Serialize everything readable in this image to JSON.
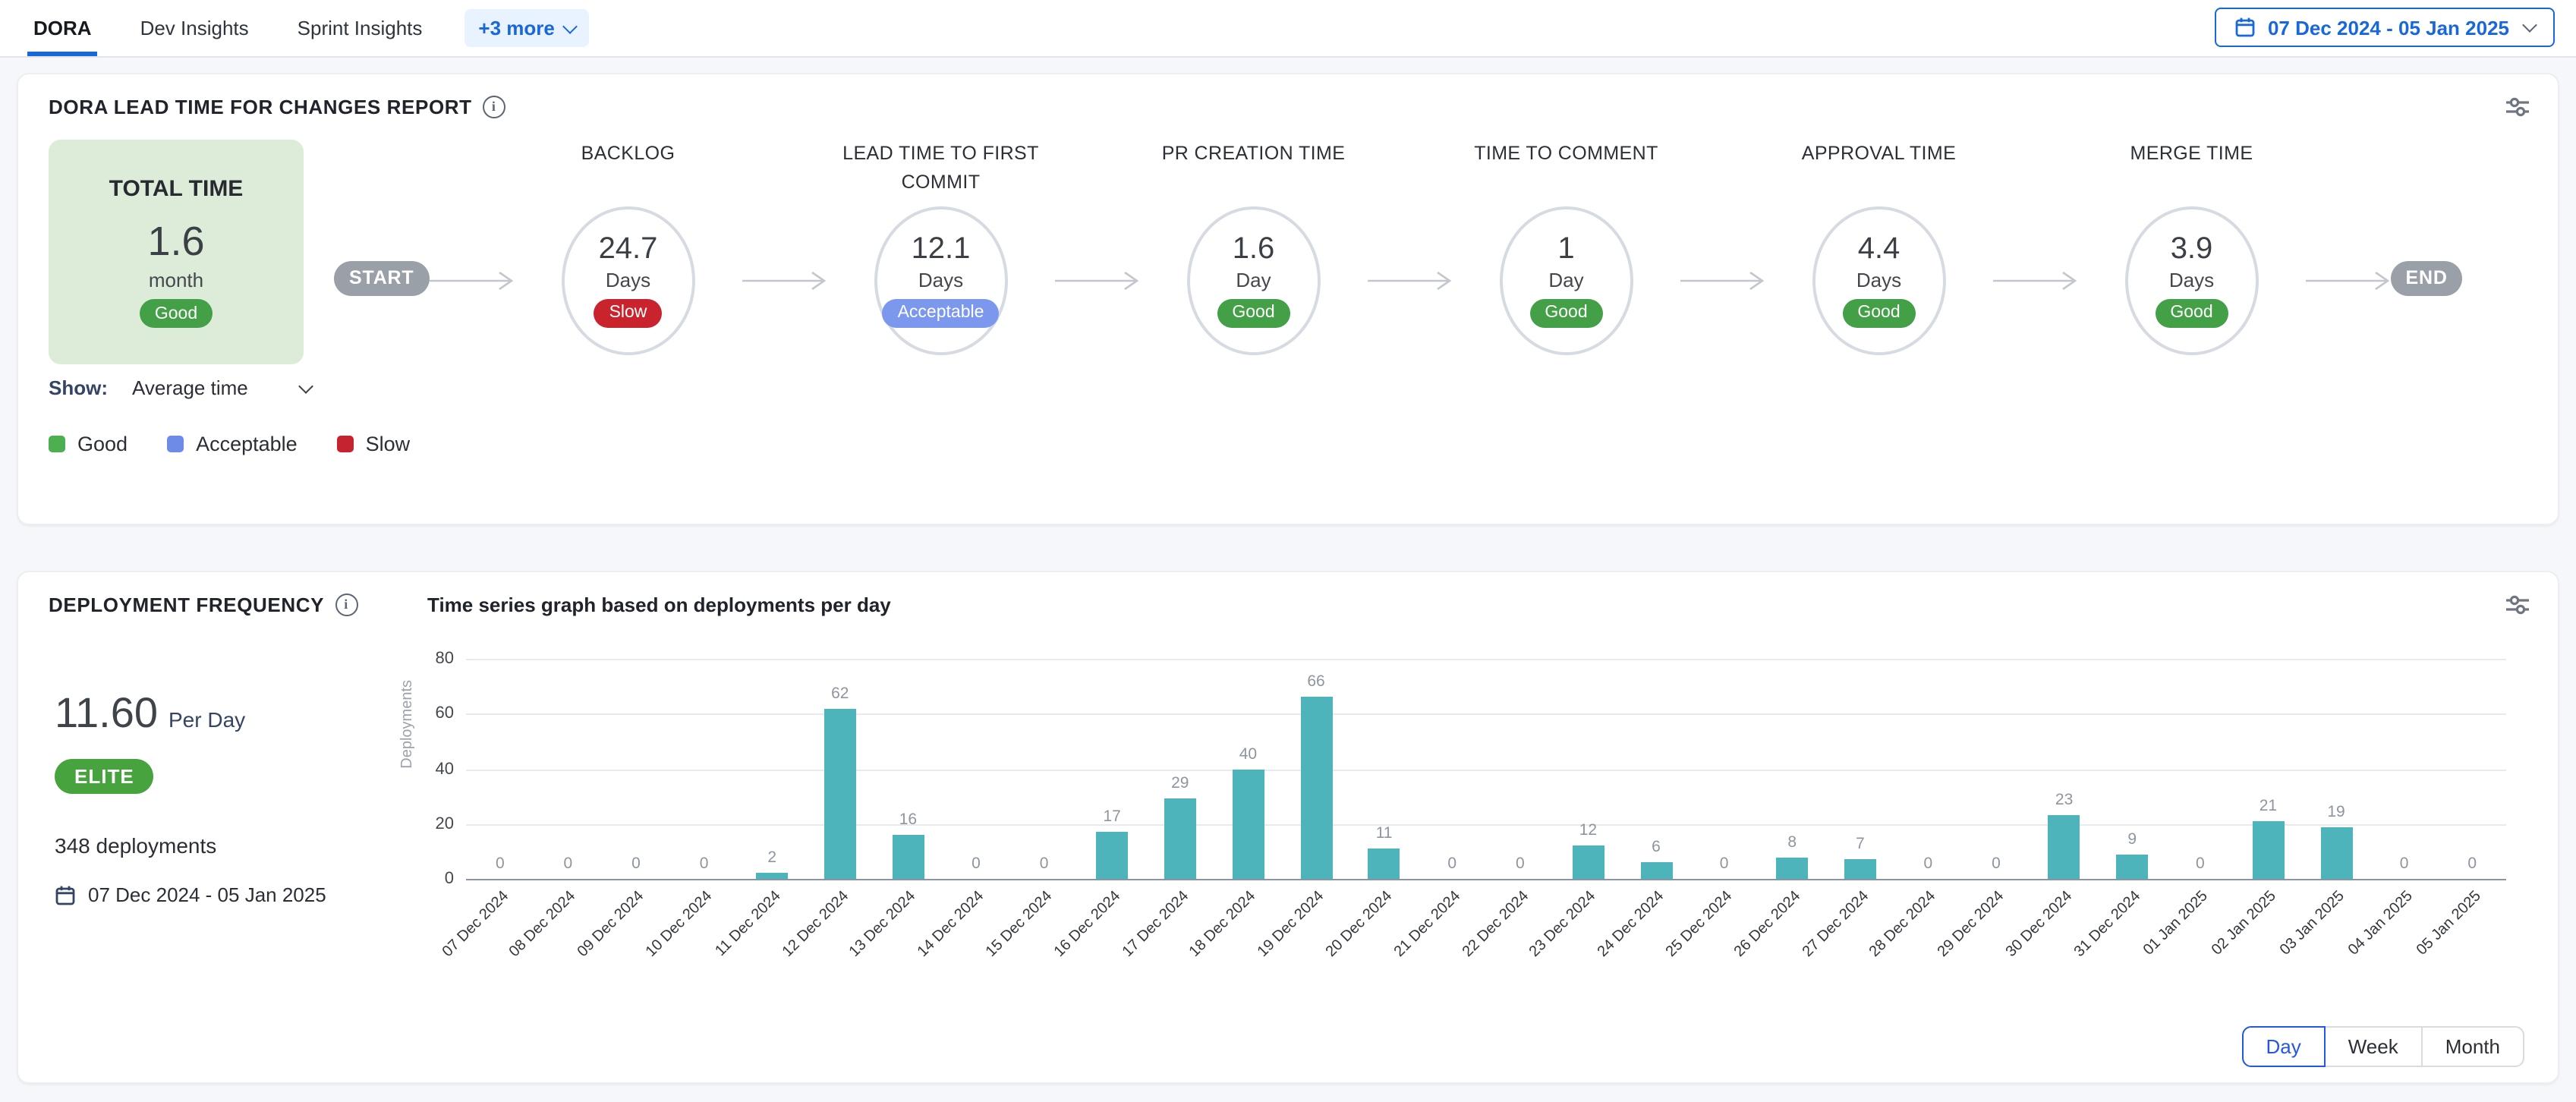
{
  "topbar": {
    "tabs": [
      {
        "label": "DORA",
        "active": true
      },
      {
        "label": "Dev Insights",
        "active": false
      },
      {
        "label": "Sprint Insights",
        "active": false
      }
    ],
    "more_label": "+3 more",
    "date_range": "07 Dec 2024 - 05 Jan 2025"
  },
  "lead_time_card": {
    "title": "DORA LEAD TIME FOR CHANGES REPORT",
    "total": {
      "label": "TOTAL TIME",
      "value": "1.6",
      "unit": "month",
      "status": "Good"
    },
    "start_label": "START",
    "end_label": "END",
    "stages": [
      {
        "name": "BACKLOG",
        "value": "24.7",
        "unit": "Days",
        "status": "Slow"
      },
      {
        "name": "LEAD TIME TO FIRST COMMIT",
        "value": "12.1",
        "unit": "Days",
        "status": "Acceptable"
      },
      {
        "name": "PR CREATION TIME",
        "value": "1.6",
        "unit": "Day",
        "status": "Good"
      },
      {
        "name": "TIME TO COMMENT",
        "value": "1",
        "unit": "Day",
        "status": "Good"
      },
      {
        "name": "APPROVAL TIME",
        "value": "4.4",
        "unit": "Days",
        "status": "Good"
      },
      {
        "name": "MERGE TIME",
        "value": "3.9",
        "unit": "Days",
        "status": "Good"
      }
    ],
    "show_label": "Show:",
    "show_value": "Average time",
    "legend": [
      {
        "label": "Good",
        "color": "#4caf50"
      },
      {
        "label": "Acceptable",
        "color": "#6d8ce8"
      },
      {
        "label": "Slow",
        "color": "#c62330"
      }
    ],
    "status_colors": {
      "Good": "#43a047",
      "Acceptable": "#7b97ee",
      "Slow": "#c9242d"
    }
  },
  "deployment_card": {
    "title": "DEPLOYMENT FREQUENCY",
    "subtitle": "Time series graph based on deployments per day",
    "rate_value": "11.60",
    "rate_unit": "Per Day",
    "tier": "ELITE",
    "total_deployments": "348 deployments",
    "date_range": "07 Dec 2024 - 05 Jan 2025",
    "granularity": [
      {
        "label": "Day",
        "active": true
      },
      {
        "label": "Week",
        "active": false
      },
      {
        "label": "Month",
        "active": false
      }
    ]
  },
  "chart_data": {
    "type": "bar",
    "title": "Time series graph based on deployments per day",
    "xlabel": "",
    "ylabel": "Deployments",
    "ylim": [
      0,
      80
    ],
    "yticks": [
      0,
      20,
      40,
      60,
      80
    ],
    "grid": true,
    "bar_color": "#4eb4bb",
    "categories": [
      "07 Dec 2024",
      "08 Dec 2024",
      "09 Dec 2024",
      "10 Dec 2024",
      "11 Dec 2024",
      "12 Dec 2024",
      "13 Dec 2024",
      "14 Dec 2024",
      "15 Dec 2024",
      "16 Dec 2024",
      "17 Dec 2024",
      "18 Dec 2024",
      "19 Dec 2024",
      "20 Dec 2024",
      "21 Dec 2024",
      "22 Dec 2024",
      "23 Dec 2024",
      "24 Dec 2024",
      "25 Dec 2024",
      "26 Dec 2024",
      "27 Dec 2024",
      "28 Dec 2024",
      "29 Dec 2024",
      "30 Dec 2024",
      "31 Dec 2024",
      "01 Jan 2025",
      "02 Jan 2025",
      "03 Jan 2025",
      "04 Jan 2025",
      "05 Jan 2025"
    ],
    "values": [
      0,
      0,
      0,
      0,
      2,
      62,
      16,
      0,
      0,
      17,
      29,
      40,
      66,
      11,
      0,
      0,
      12,
      6,
      0,
      8,
      7,
      0,
      0,
      23,
      9,
      0,
      21,
      19,
      0,
      0
    ]
  },
  "colors": {
    "accent": "#1868db",
    "bar": "#4eb4bb",
    "tier_green": "#47a33e",
    "segmented_active": "#2458e4"
  }
}
